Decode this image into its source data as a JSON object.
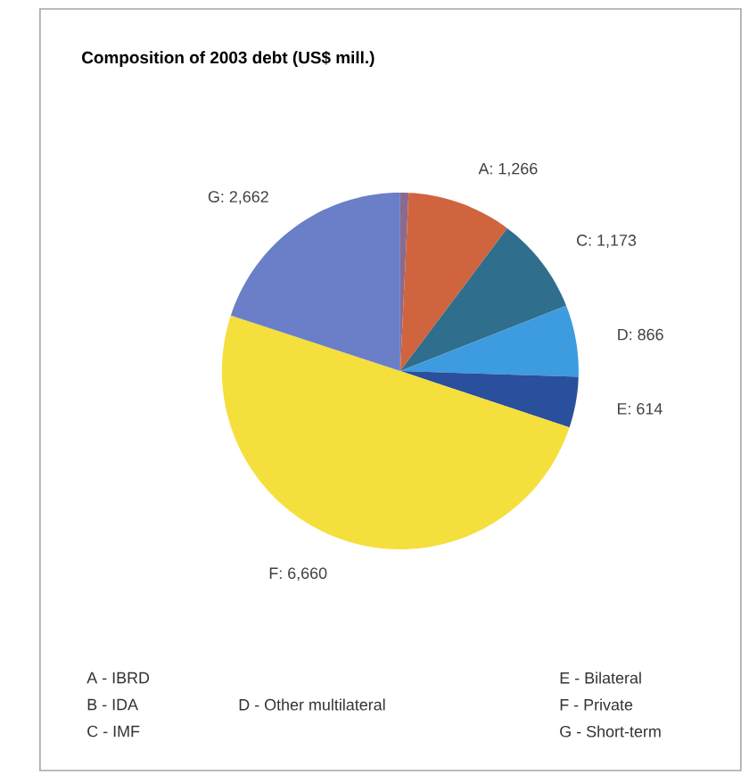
{
  "chart_data": {
    "type": "pie",
    "title": "Composition of 2003 debt (US$ mill.)",
    "categories": [
      null,
      null,
      null,
      null,
      null,
      null,
      null
    ],
    "values": [
      100,
      1266,
      1173,
      866,
      614,
      6660,
      2662
    ],
    "value_labels": [
      null,
      "A: 1,266",
      "C: 1,173",
      "D: 866",
      "E: 614",
      "F: 6,660",
      "G: 2,662"
    ],
    "colors": [
      "#8a6a8f",
      "#d0643f",
      "#2f6e8c",
      "#3d9be0",
      "#2a4f9c",
      "#f5df3c",
      "#6a7fc8"
    ],
    "annotations": [
      "A - IBRD",
      "B - IDA",
      "C - IMF",
      "D - Other multilateral",
      "E - Bilateral",
      "F - Private",
      "G - Short-term"
    ]
  }
}
